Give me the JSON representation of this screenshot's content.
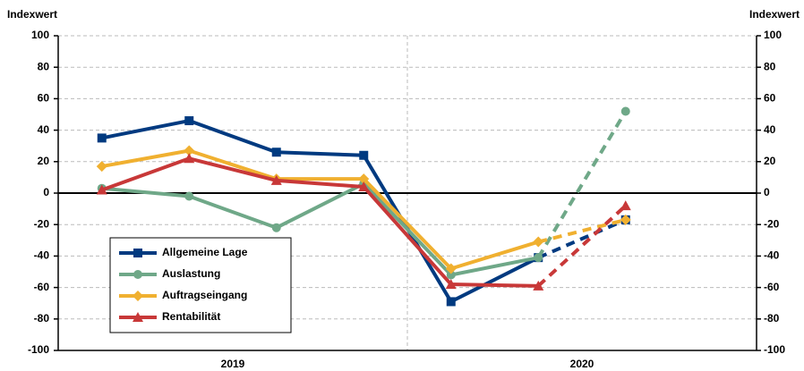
{
  "chart_data": {
    "type": "line",
    "y_label": "Indexwert",
    "y2_label": "Indexwert",
    "categories": [
      null,
      null,
      null,
      null,
      null,
      null,
      null,
      null
    ],
    "x_groups": [
      "2019",
      "2020"
    ],
    "ylim": [
      -100,
      100
    ],
    "yticks": [
      -100,
      -80,
      -60,
      -40,
      -20,
      0,
      20,
      40,
      60,
      80,
      100
    ],
    "y2lim": [
      -100,
      100
    ],
    "y2ticks": [
      -100,
      -80,
      -60,
      -40,
      -20,
      0,
      20,
      40,
      60,
      80,
      100
    ],
    "grid": true,
    "legend": "lower left",
    "dashed_from": 5,
    "series": [
      {
        "name": "Allgemeine Lage",
        "color": "#003a80",
        "marker": "square",
        "values": [
          35,
          46,
          26,
          24,
          -69,
          -41,
          -17,
          null
        ]
      },
      {
        "name": "Auslastung",
        "color": "#6fa888",
        "marker": "circle",
        "values": [
          3,
          -2,
          -22,
          6,
          -52,
          -41,
          52,
          null
        ]
      },
      {
        "name": "Auftragseingang",
        "color": "#f0b030",
        "marker": "diamond",
        "values": [
          17,
          27,
          9,
          9,
          -48,
          -31,
          -17,
          null
        ]
      },
      {
        "name": "Rentabilität",
        "color": "#c83838",
        "marker": "triangle",
        "values": [
          2,
          22,
          8,
          4,
          -58,
          -59,
          -8,
          null
        ]
      }
    ]
  }
}
